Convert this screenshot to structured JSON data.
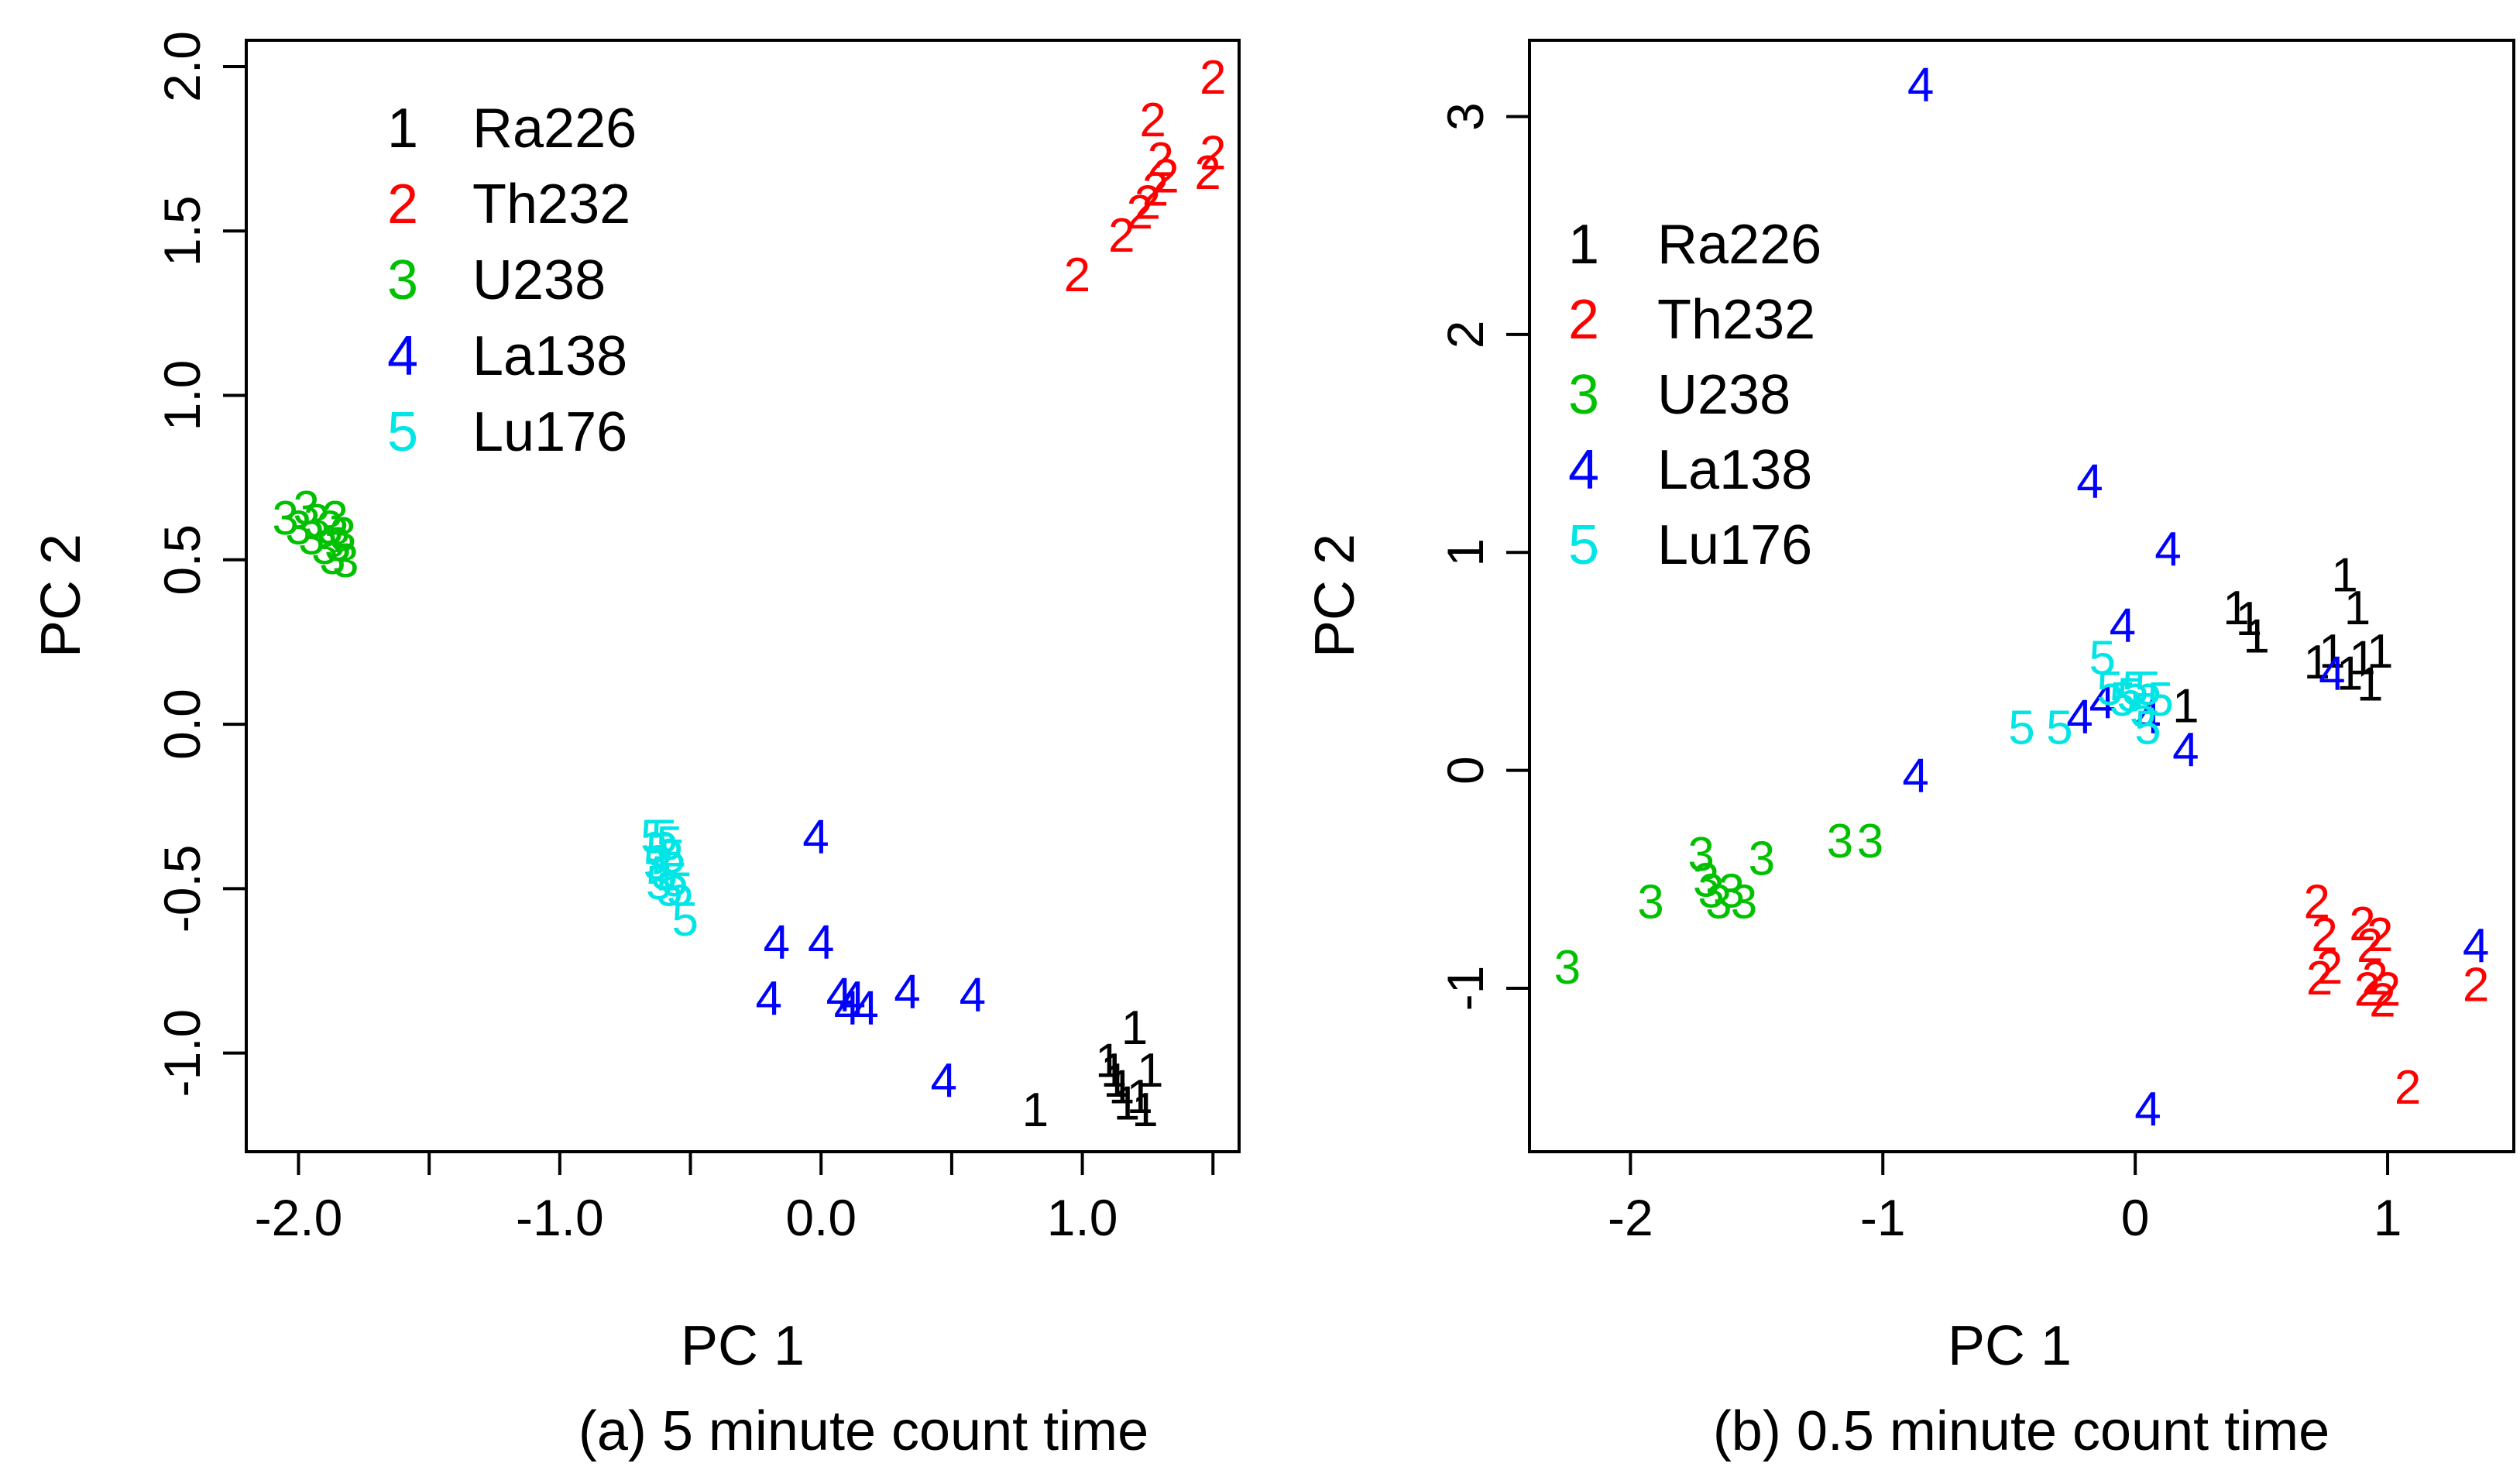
{
  "chart_data": [
    {
      "type": "scatter",
      "caption": "(a) 5 minute count time",
      "xlabel": "PC 1",
      "ylabel": "PC 2",
      "xlim": [
        -2.2,
        1.6
      ],
      "ylim": [
        -1.3,
        2.08
      ],
      "xticks": [
        -2.0,
        -1.5,
        -1.0,
        -0.5,
        0.0,
        0.5,
        1.0,
        1.5
      ],
      "xtick_labels": [
        "-2.0",
        "",
        "-1.0",
        "",
        "0.0",
        "",
        "1.0",
        ""
      ],
      "yticks": [
        -1.0,
        -0.5,
        0.0,
        0.5,
        1.0,
        1.5,
        2.0
      ],
      "ytick_labels": [
        "-1.0",
        "-0.5",
        "0.0",
        "0.5",
        "1.0",
        "1.5",
        "2.0"
      ],
      "legend": [
        {
          "symbol": "1",
          "label": "Ra226",
          "color": "#000000"
        },
        {
          "symbol": "2",
          "label": "Th232",
          "color": "#ff0000"
        },
        {
          "symbol": "3",
          "label": "U238",
          "color": "#00c000"
        },
        {
          "symbol": "4",
          "label": "La138",
          "color": "#0000ff"
        },
        {
          "symbol": "5",
          "label": "Lu176",
          "color": "#00e5e5"
        }
      ],
      "legend_position": "top-left",
      "series": [
        {
          "name": "Ra226",
          "symbol": "1",
          "color": "#000000",
          "points": [
            [
              0.82,
              -1.17
            ],
            [
              1.1,
              -1.02
            ],
            [
              1.12,
              -1.05
            ],
            [
              1.13,
              -1.08
            ],
            [
              1.15,
              -1.1
            ],
            [
              1.17,
              -1.15
            ],
            [
              1.2,
              -0.92
            ],
            [
              1.22,
              -1.13
            ],
            [
              1.24,
              -1.17
            ],
            [
              1.26,
              -1.05
            ]
          ]
        },
        {
          "name": "Th232",
          "symbol": "2",
          "color": "#ff0000",
          "points": [
            [
              0.98,
              1.37
            ],
            [
              1.15,
              1.49
            ],
            [
              1.22,
              1.56
            ],
            [
              1.25,
              1.59
            ],
            [
              1.28,
              1.63
            ],
            [
              1.3,
              1.72
            ],
            [
              1.32,
              1.67
            ],
            [
              1.27,
              1.84
            ],
            [
              1.48,
              1.68
            ],
            [
              1.5,
              1.74
            ],
            [
              1.5,
              1.97
            ]
          ]
        },
        {
          "name": "U238",
          "symbol": "3",
          "color": "#00c000",
          "points": [
            [
              -2.05,
              0.63
            ],
            [
              -2.0,
              0.6
            ],
            [
              -1.97,
              0.66
            ],
            [
              -1.95,
              0.57
            ],
            [
              -1.93,
              0.62
            ],
            [
              -1.9,
              0.54
            ],
            [
              -1.88,
              0.6
            ],
            [
              -1.87,
              0.51
            ],
            [
              -1.86,
              0.63
            ],
            [
              -1.85,
              0.55
            ],
            [
              -1.83,
              0.58
            ],
            [
              -1.82,
              0.5
            ]
          ]
        },
        {
          "name": "La138",
          "symbol": "4",
          "color": "#0000ff",
          "points": [
            [
              -0.02,
              -0.34
            ],
            [
              -0.17,
              -0.66
            ],
            [
              0.0,
              -0.66
            ],
            [
              -0.2,
              -0.83
            ],
            [
              0.07,
              -0.82
            ],
            [
              0.12,
              -0.83
            ],
            [
              0.1,
              -0.86
            ],
            [
              0.17,
              -0.86
            ],
            [
              0.33,
              -0.81
            ],
            [
              0.58,
              -0.82
            ],
            [
              0.47,
              -1.08
            ]
          ]
        },
        {
          "name": "Lu176",
          "symbol": "5",
          "color": "#00e5e5",
          "points": [
            [
              -0.64,
              -0.34
            ],
            [
              -0.62,
              -0.38
            ],
            [
              -0.6,
              -0.34
            ],
            [
              -0.58,
              -0.36
            ],
            [
              -0.57,
              -0.4
            ],
            [
              -0.63,
              -0.42
            ],
            [
              -0.6,
              -0.45
            ],
            [
              -0.56,
              -0.47
            ],
            [
              -0.62,
              -0.48
            ],
            [
              -0.58,
              -0.5
            ],
            [
              -0.54,
              -0.5
            ],
            [
              -0.52,
              -0.59
            ]
          ]
        }
      ]
    },
    {
      "type": "scatter",
      "caption": "(b) 0.5 minute count time",
      "xlabel": "PC 1",
      "ylabel": "PC 2",
      "xlim": [
        -2.4,
        1.5
      ],
      "ylim": [
        -1.75,
        3.35
      ],
      "xticks": [
        -2,
        -1,
        0,
        1
      ],
      "xtick_labels": [
        "-2",
        "-1",
        "0",
        "1"
      ],
      "yticks": [
        -1,
        0,
        1,
        2,
        3
      ],
      "ytick_labels": [
        "-1",
        "0",
        "1",
        "2",
        "3"
      ],
      "legend": [
        {
          "symbol": "1",
          "label": "Ra226",
          "color": "#000000"
        },
        {
          "symbol": "2",
          "label": "Th232",
          "color": "#ff0000"
        },
        {
          "symbol": "3",
          "label": "U238",
          "color": "#00c000"
        },
        {
          "symbol": "4",
          "label": "La138",
          "color": "#0000ff"
        },
        {
          "symbol": "5",
          "label": "Lu176",
          "color": "#00e5e5"
        }
      ],
      "legend_position": "top-left",
      "series": [
        {
          "name": "Ra226",
          "symbol": "1",
          "color": "#000000",
          "points": [
            [
              0.2,
              0.3
            ],
            [
              0.4,
              0.75
            ],
            [
              0.45,
              0.7
            ],
            [
              0.48,
              0.62
            ],
            [
              0.72,
              0.5
            ],
            [
              0.78,
              0.55
            ],
            [
              0.83,
              0.9
            ],
            [
              0.88,
              0.75
            ],
            [
              0.85,
              0.45
            ],
            [
              0.9,
              0.52
            ],
            [
              0.93,
              0.4
            ],
            [
              0.97,
              0.55
            ]
          ]
        },
        {
          "name": "Th232",
          "symbol": "2",
          "color": "#ff0000",
          "points": [
            [
              0.72,
              -0.6
            ],
            [
              0.75,
              -0.75
            ],
            [
              0.77,
              -0.9
            ],
            [
              0.73,
              -0.95
            ],
            [
              0.9,
              -0.7
            ],
            [
              0.93,
              -0.8
            ],
            [
              0.95,
              -0.95
            ],
            [
              0.97,
              -0.75
            ],
            [
              0.92,
              -1.0
            ],
            [
              0.98,
              -1.05
            ],
            [
              1.0,
              -1.0
            ],
            [
              1.08,
              -1.45
            ],
            [
              1.35,
              -0.98
            ]
          ]
        },
        {
          "name": "U238",
          "symbol": "3",
          "color": "#00c000",
          "points": [
            [
              -2.25,
              -0.9
            ],
            [
              -1.92,
              -0.6
            ],
            [
              -1.72,
              -0.38
            ],
            [
              -1.7,
              -0.5
            ],
            [
              -1.68,
              -0.55
            ],
            [
              -1.65,
              -0.6
            ],
            [
              -1.6,
              -0.55
            ],
            [
              -1.55,
              -0.6
            ],
            [
              -1.48,
              -0.4
            ],
            [
              -1.17,
              -0.32
            ],
            [
              -1.05,
              -0.32
            ]
          ]
        },
        {
          "name": "La138",
          "symbol": "4",
          "color": "#0000ff",
          "points": [
            [
              -0.85,
              3.15
            ],
            [
              -0.18,
              1.33
            ],
            [
              0.13,
              1.02
            ],
            [
              -0.05,
              0.67
            ],
            [
              -0.87,
              -0.02
            ],
            [
              -0.22,
              0.25
            ],
            [
              -0.13,
              0.32
            ],
            [
              0.05,
              0.25
            ],
            [
              0.2,
              0.1
            ],
            [
              0.78,
              0.45
            ],
            [
              1.35,
              -0.8
            ],
            [
              0.05,
              -1.55
            ]
          ]
        },
        {
          "name": "Lu176",
          "symbol": "5",
          "color": "#00e5e5",
          "points": [
            [
              -0.45,
              0.2
            ],
            [
              -0.3,
              0.2
            ],
            [
              -0.13,
              0.52
            ],
            [
              -0.1,
              0.38
            ],
            [
              -0.05,
              0.33
            ],
            [
              -0.02,
              0.35
            ],
            [
              0.0,
              0.38
            ],
            [
              0.03,
              0.28
            ],
            [
              0.05,
              0.38
            ],
            [
              0.1,
              0.33
            ],
            [
              0.05,
              0.2
            ]
          ]
        }
      ]
    }
  ]
}
